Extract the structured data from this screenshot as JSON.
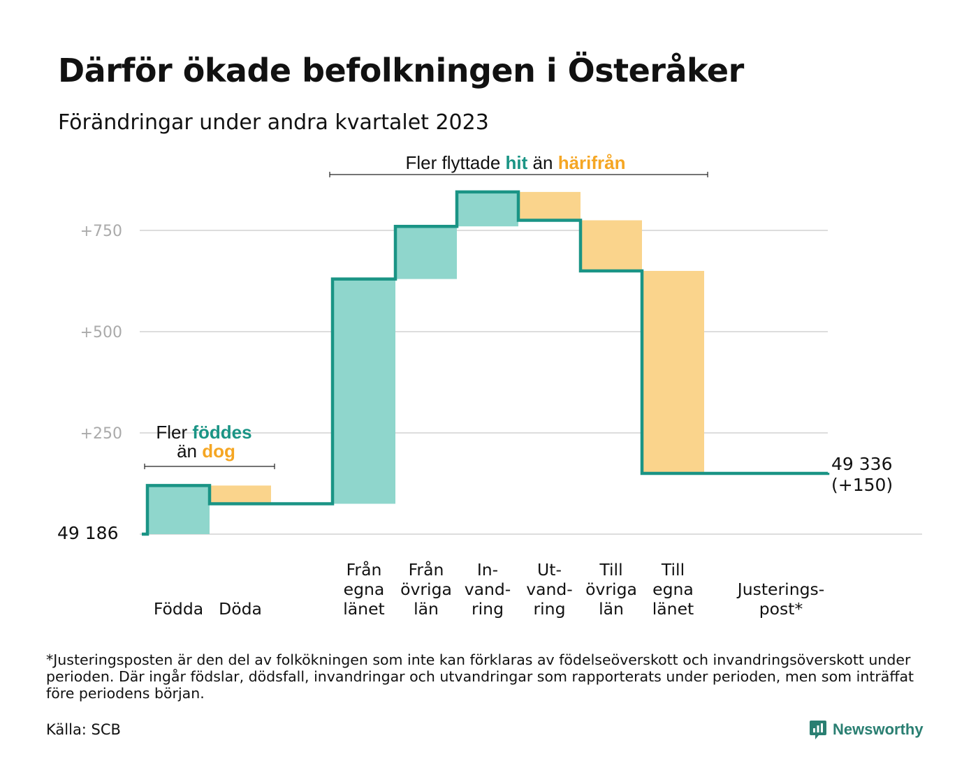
{
  "title": "Därför ökade befolkningen i Österåker",
  "subtitle": "Förändringar under andra kvartalet 2023",
  "colors": {
    "teal": "#1a9485",
    "teal_light": "#8fd6cc",
    "orange": "#f5a623",
    "orange_light": "#fad48c",
    "grid": "#dddddd",
    "tick": "#aaaaaa"
  },
  "chart_data": {
    "type": "bar",
    "subtype": "waterfall",
    "start_value": 49186,
    "start_label": "49  186",
    "end_label_line1": "49 336",
    "end_label_line2": "(+150)",
    "yticks": [
      {
        "value": 250,
        "label": "+250"
      },
      {
        "value": 500,
        "label": "+500"
      },
      {
        "value": 750,
        "label": "+750"
      }
    ],
    "ylim": [
      0,
      850
    ],
    "steps": [
      {
        "name": "Födda",
        "label_lines": [
          "Födda"
        ],
        "change": 120,
        "kind": "in"
      },
      {
        "name": "Döda",
        "label_lines": [
          "Döda"
        ],
        "change": -45,
        "kind": "out"
      },
      {
        "name": "Från egna länet",
        "label_lines": [
          "Från",
          "egna",
          "länet"
        ],
        "change": 555,
        "kind": "in"
      },
      {
        "name": "Från övriga län",
        "label_lines": [
          "Från",
          "övriga",
          "län"
        ],
        "change": 130,
        "kind": "in"
      },
      {
        "name": "Invandring",
        "label_lines": [
          "In-",
          "vand-",
          "ring"
        ],
        "change": 85,
        "kind": "in"
      },
      {
        "name": "Utvandring",
        "label_lines": [
          "Ut-",
          "vand-",
          "ring"
        ],
        "change": -70,
        "kind": "out"
      },
      {
        "name": "Till övriga län",
        "label_lines": [
          "Till",
          "övriga",
          "län"
        ],
        "change": -125,
        "kind": "out"
      },
      {
        "name": "Till egna länet",
        "label_lines": [
          "Till",
          "egna",
          "länet"
        ],
        "change": -500,
        "kind": "out"
      },
      {
        "name": "Justeringspost*",
        "label_lines": [
          "Justerings-",
          "post*"
        ],
        "change": 0,
        "kind": "adjust"
      }
    ],
    "annotations": [
      {
        "id": "births",
        "text_before": "Fler",
        "highlight_in": "föddes",
        "text_between": "än",
        "highlight_out": "dog"
      },
      {
        "id": "migration",
        "text_before": "Fler flyttade",
        "highlight_in": "hit",
        "text_between": "än",
        "highlight_out": "härifrån"
      }
    ]
  },
  "footnote": "*Justeringsposten är den del av folkökningen som inte kan förklaras av födelseöverskott och invandringsöverskott under perioden. Där ingår födslar, dödsfall, invandringar och utvandringar som rapporterats under perioden, men som inträffat före periodens början.",
  "source": "Källa: SCB",
  "brand": {
    "name": "Newsworthy",
    "icon": "newsworthy-logo-icon"
  }
}
